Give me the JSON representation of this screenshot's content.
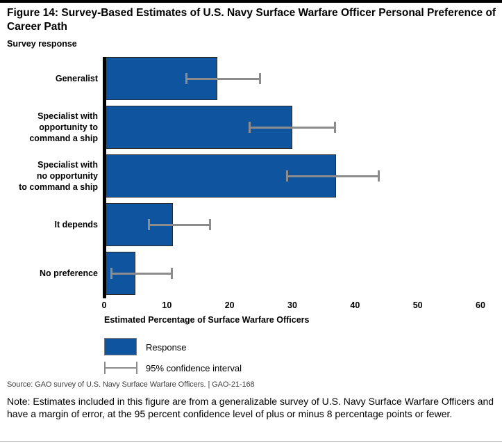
{
  "figure": {
    "title": "Figure 14: Survey-Based Estimates of U.S. Navy Surface Warfare Officer Personal Preference of Career Path",
    "source_line": "Source: GAO survey of U.S. Navy Surface Warfare Officers.  |  GAO-21-168",
    "note": "Note: Estimates included in this figure are from a generalizable survey of U.S. Navy Surface Warfare Officers and have a margin of error, at the 95 percent confidence level of plus or minus 8 percentage points or fewer."
  },
  "chart_data": {
    "type": "bar",
    "orientation": "horizontal",
    "title": "Survey-Based Estimates of U.S. Navy Surface Warfare Officer Personal Preference of Career Path",
    "ylabel": "Survey response",
    "xlabel": "Estimated Percentage of Surface Warfare Officers",
    "xlim": [
      0,
      60
    ],
    "x_ticks": [
      "0",
      "10",
      "20",
      "30",
      "40",
      "50",
      "60"
    ],
    "grid": false,
    "legend_position": "bottom-left",
    "categories": [
      "Generalist",
      "Specialist with\nopportunity to\ncommand a ship",
      "Specialist with\nno opportunity\nto command a ship",
      "It depends",
      "No preference"
    ],
    "series": [
      {
        "name": "Response",
        "values": [
          18,
          30,
          37,
          11,
          5
        ]
      }
    ],
    "confidence_intervals": {
      "name": "95% confidence interval",
      "level": "95%",
      "low": [
        13,
        23,
        29,
        7,
        1
      ],
      "high": [
        25,
        37,
        44,
        17,
        11
      ]
    },
    "legend": {
      "response_label": "Response",
      "ci_label": "95% confidence interval"
    },
    "colors": {
      "bar_fill": "#0F549E",
      "bar_border": "#2a2a2a",
      "ci_gray": "#8c8c8c",
      "axis_black": "#000000"
    }
  }
}
